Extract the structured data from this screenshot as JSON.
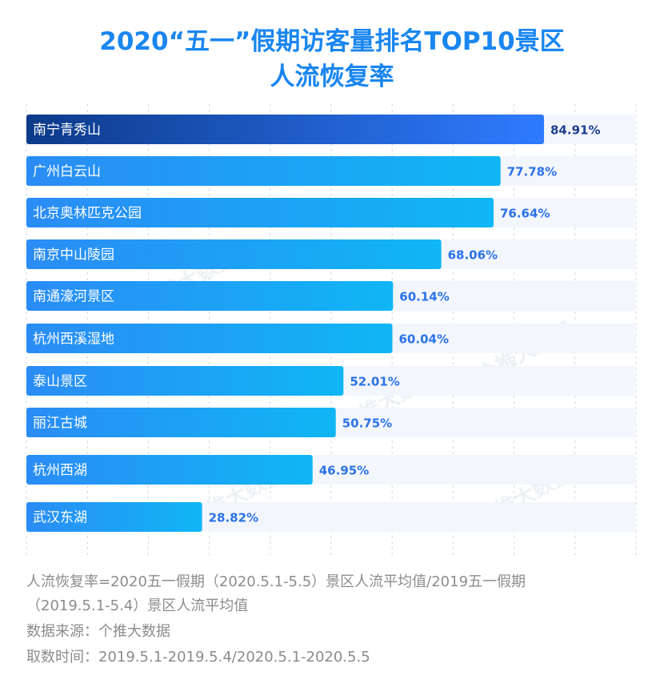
{
  "page_title": {
    "line1": "2020“五一”假期访客量排名TOP10景区",
    "line2": "人流恢复率"
  },
  "chart_data": {
    "type": "bar",
    "orientation": "horizontal",
    "title": "2020“五一”假期访客量排名TOP10景区人流恢复率",
    "categories": [
      "南宁青秀山",
      "广州白云山",
      "北京奥林匹克公园",
      "南京中山陵园",
      "南通濠河景区",
      "杭州西溪湿地",
      "泰山景区",
      "丽江古城",
      "杭州西湖",
      "武汉东湖"
    ],
    "values": [
      84.91,
      77.78,
      76.64,
      68.06,
      60.14,
      60.04,
      52.01,
      50.75,
      46.95,
      28.82
    ],
    "value_labels": [
      "84.91%",
      "77.78%",
      "76.64%",
      "68.06%",
      "60.14%",
      "60.04%",
      "52.01%",
      "50.75%",
      "46.95%",
      "28.82%"
    ],
    "xlim": [
      0,
      100
    ],
    "grid": true,
    "colors": {
      "highlight_start": "#0d3a8a",
      "highlight_end": "#2f7bff",
      "bar_start": "#2a8cf5",
      "bar_end": "#10b6f5",
      "track": "#f3f6fc",
      "value_highlight": "#1c3f8f",
      "value_normal": "#2b73e8",
      "grid": "#cfd6e0"
    }
  },
  "notes": {
    "line1": "人流恢复率=2020五一假期（2020.5.1-5.5）景区人流平均值/2019五一假期",
    "line2": "（2019.5.1-5.4）景区人流平均值",
    "source": "数据来源：个推大数据",
    "period": "取数时间：2019.5.1-2019.5.4/2020.5.1-2020.5.5"
  },
  "watermark": "个推大数据"
}
